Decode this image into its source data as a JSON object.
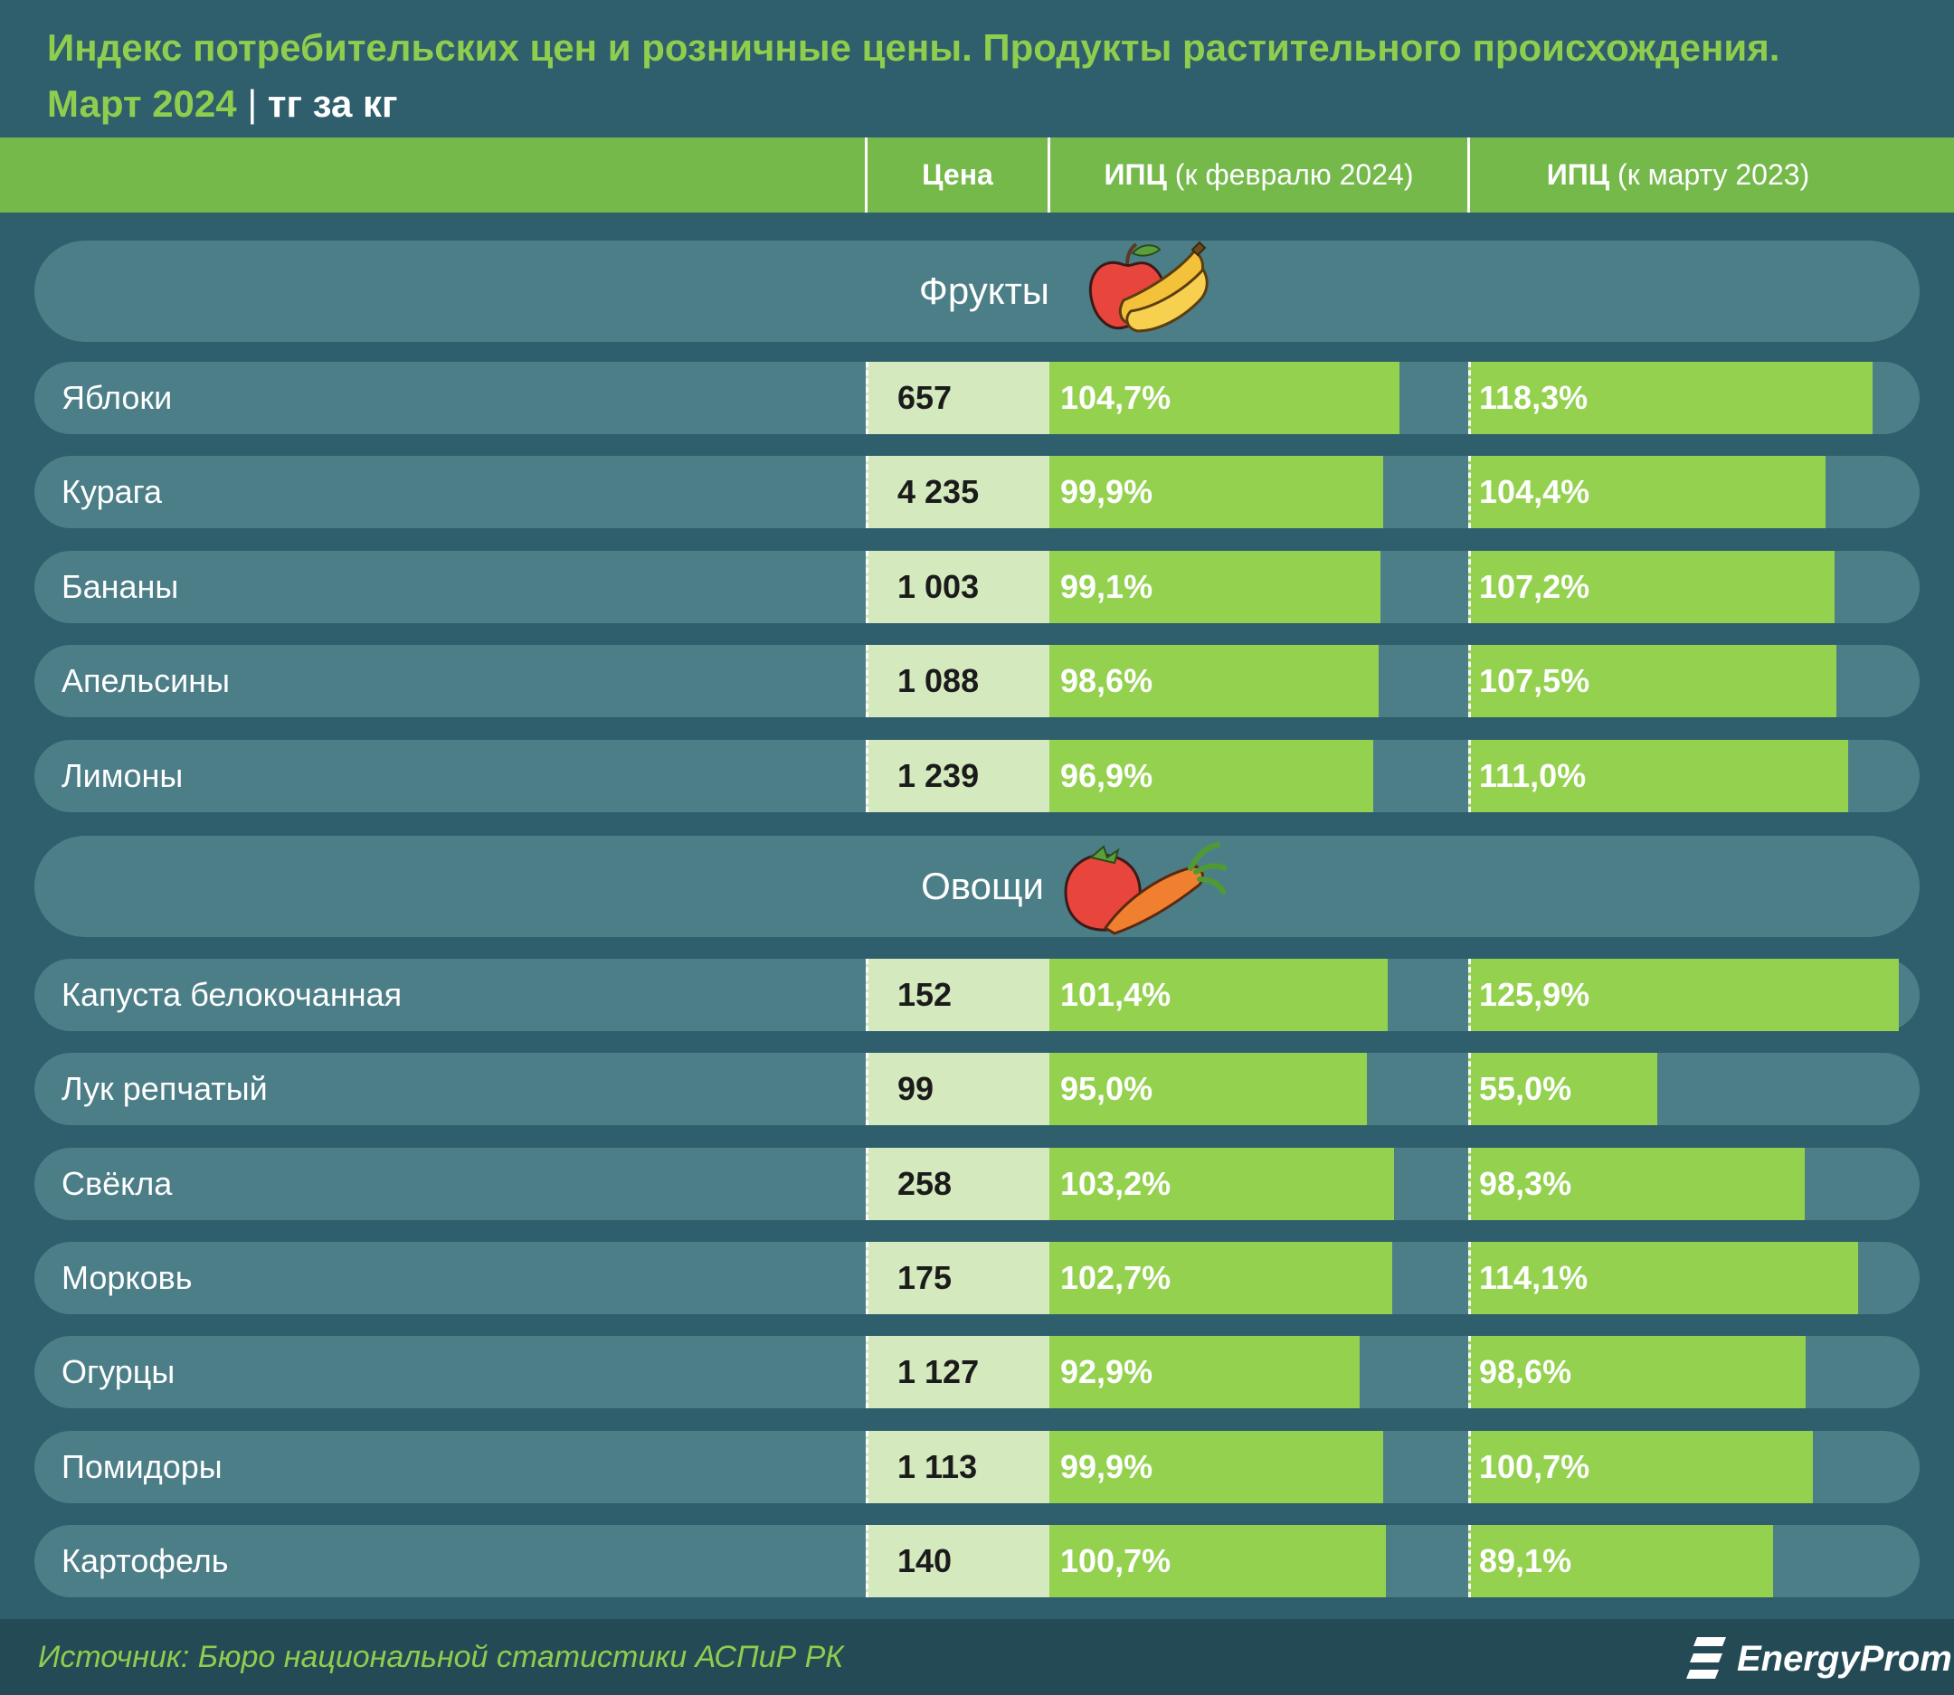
{
  "title": {
    "line1": "Индекс потребительских цен и розничные цены. Продукты растительного происхождения.",
    "period": "Март 2024",
    "separator": "|",
    "unit": "тг за кг"
  },
  "header": {
    "price": "Цена",
    "cpi1_bold": "ИПЦ",
    "cpi1_rest": "(к февралю 2024)",
    "cpi2_bold": "ИПЦ",
    "cpi2_rest": "(к марту 2023)"
  },
  "footer": {
    "source": "Источник: Бюро национальной статистики АСПиР РК",
    "logo": "EnergyProm"
  },
  "chart_data": {
    "type": "table",
    "title": "Индекс потребительских цен и розничные цены. Продукты растительного происхождения. Март 2024",
    "unit": "тг за кг",
    "columns": [
      "Цена",
      "ИПЦ (к февралю 2024)",
      "ИПЦ (к марту 2023)"
    ],
    "bar_scale_max": 130,
    "sections": [
      {
        "name": "Фрукты",
        "icon": "fruits-icon",
        "rows": [
          {
            "name": "Яблоки",
            "price": "657",
            "cpi_feb": "104,7%",
            "cpi_feb_value": 104.7,
            "cpi_mar": "118,3%",
            "cpi_mar_value": 118.3
          },
          {
            "name": "Курага",
            "price": "4 235",
            "cpi_feb": "99,9%",
            "cpi_feb_value": 99.9,
            "cpi_mar": "104,4%",
            "cpi_mar_value": 104.4
          },
          {
            "name": "Бананы",
            "price": "1 003",
            "cpi_feb": "99,1%",
            "cpi_feb_value": 99.1,
            "cpi_mar": "107,2%",
            "cpi_mar_value": 107.2
          },
          {
            "name": "Апельсины",
            "price": "1 088",
            "cpi_feb": "98,6%",
            "cpi_feb_value": 98.6,
            "cpi_mar": "107,5%",
            "cpi_mar_value": 107.5
          },
          {
            "name": "Лимоны",
            "price": "1 239",
            "cpi_feb": "96,9%",
            "cpi_feb_value": 96.9,
            "cpi_mar": "111,0%",
            "cpi_mar_value": 111.0
          }
        ]
      },
      {
        "name": "Овощи",
        "icon": "vegetables-icon",
        "rows": [
          {
            "name": "Капуста белокочанная",
            "price": "152",
            "cpi_feb": "101,4%",
            "cpi_feb_value": 101.4,
            "cpi_mar": "125,9%",
            "cpi_mar_value": 125.9
          },
          {
            "name": "Лук репчатый",
            "price": "99",
            "cpi_feb": "95,0%",
            "cpi_feb_value": 95.0,
            "cpi_mar": "55,0%",
            "cpi_mar_value": 55.0
          },
          {
            "name": "Свёкла",
            "price": "258",
            "cpi_feb": "103,2%",
            "cpi_feb_value": 103.2,
            "cpi_mar": "98,3%",
            "cpi_mar_value": 98.3
          },
          {
            "name": "Морковь",
            "price": "175",
            "cpi_feb": "102,7%",
            "cpi_feb_value": 102.7,
            "cpi_mar": "114,1%",
            "cpi_mar_value": 114.1
          },
          {
            "name": "Огурцы",
            "price": "1 127",
            "cpi_feb": "92,9%",
            "cpi_feb_value": 92.9,
            "cpi_mar": "98,6%",
            "cpi_mar_value": 98.6
          },
          {
            "name": "Помидоры",
            "price": "1 113",
            "cpi_feb": "99,9%",
            "cpi_feb_value": 99.9,
            "cpi_mar": "100,7%",
            "cpi_mar_value": 100.7
          },
          {
            "name": "Картофель",
            "price": "140",
            "cpi_feb": "100,7%",
            "cpi_feb_value": 100.7,
            "cpi_mar": "89,1%",
            "cpi_mar_value": 89.1
          }
        ]
      }
    ]
  },
  "colors": {
    "background": "#2f5e6c",
    "row": "#4c7e88",
    "bar": "#93d14f",
    "header": "#74b94a",
    "price_cell": "#d4e9bd",
    "title": "#8fcd4e"
  }
}
